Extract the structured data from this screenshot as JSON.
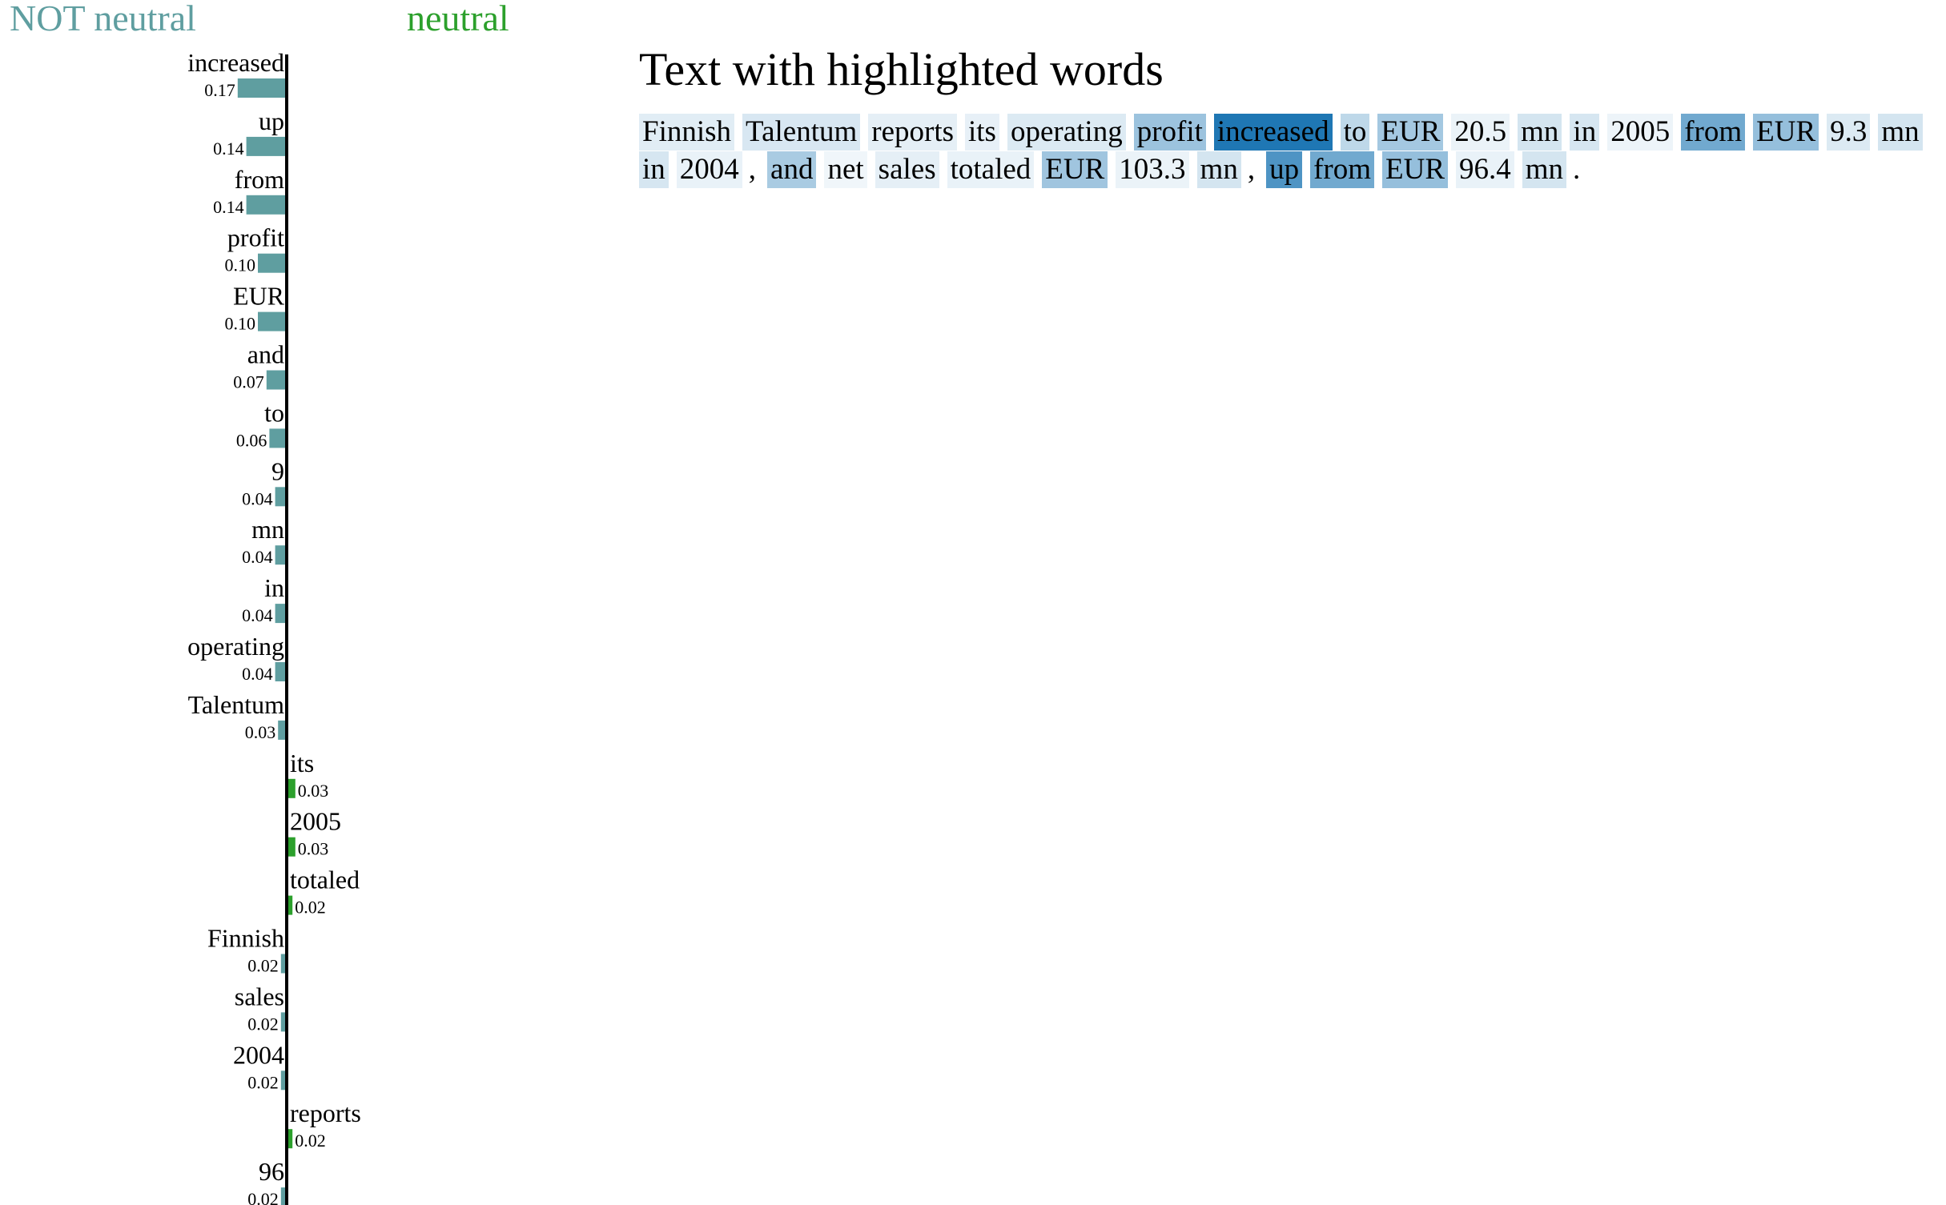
{
  "legend": {
    "left_label": "NOT neutral",
    "right_label": "neutral"
  },
  "colors": {
    "negative_bar": "#5f9ea0",
    "positive_bar": "#2ca02c",
    "highlight_base": "#1f77b4"
  },
  "chart_data": {
    "type": "bar",
    "orientation": "horizontal-diverging",
    "categories": [
      "increased",
      "up",
      "from",
      "profit",
      "EUR",
      "and",
      "to",
      "9",
      "mn",
      "in",
      "operating",
      "Talentum",
      "its",
      "2005",
      "totaled",
      "Finnish",
      "sales",
      "2004",
      "reports",
      "96"
    ],
    "values": [
      -0.17,
      -0.14,
      -0.14,
      -0.1,
      -0.1,
      -0.07,
      -0.06,
      -0.04,
      -0.04,
      -0.04,
      -0.04,
      -0.03,
      0.03,
      0.03,
      0.02,
      -0.02,
      -0.02,
      -0.02,
      0.02,
      -0.02
    ],
    "value_labels": [
      "0.17",
      "0.14",
      "0.14",
      "0.10",
      "0.10",
      "0.07",
      "0.06",
      "0.04",
      "0.04",
      "0.04",
      "0.04",
      "0.03",
      "0.03",
      "0.03",
      "0.02",
      "0.02",
      "0.02",
      "0.02",
      "0.02",
      "0.02"
    ]
  },
  "text_panel": {
    "title": "Text with highlighted words",
    "tokens": [
      {
        "t": "Finnish",
        "w": 0.1
      },
      {
        "t": "Talentum",
        "w": 0.14
      },
      {
        "t": "reports",
        "w": 0.08
      },
      {
        "t": "its",
        "w": 0.07
      },
      {
        "t": "operating",
        "w": 0.12
      },
      {
        "t": "profit",
        "w": 0.42
      },
      {
        "t": "increased",
        "w": 1.0
      },
      {
        "t": "to",
        "w": 0.26
      },
      {
        "t": "EUR",
        "w": 0.38
      },
      {
        "t": "20.5",
        "w": 0.05
      },
      {
        "t": "mn",
        "w": 0.16
      },
      {
        "t": "in",
        "w": 0.15
      },
      {
        "t": "2005",
        "w": 0.04
      },
      {
        "t": "from",
        "w": 0.62
      },
      {
        "t": "EUR",
        "w": 0.45
      },
      {
        "t": "9.3",
        "w": 0.12
      },
      {
        "t": "mn",
        "w": 0.16
      },
      {
        "t": "in",
        "w": 0.15
      },
      {
        "t": "2004",
        "w": 0.06
      },
      {
        "t": ",",
        "w": 0.0
      },
      {
        "t": "and",
        "w": 0.36
      },
      {
        "t": "net",
        "w": 0.03
      },
      {
        "t": "sales",
        "w": 0.08
      },
      {
        "t": "totaled",
        "w": 0.06
      },
      {
        "t": "EUR",
        "w": 0.4
      },
      {
        "t": "103.3",
        "w": 0.05
      },
      {
        "t": "mn",
        "w": 0.16
      },
      {
        "t": ",",
        "w": 0.0
      },
      {
        "t": "up",
        "w": 0.78
      },
      {
        "t": "from",
        "w": 0.62
      },
      {
        "t": "EUR",
        "w": 0.45
      },
      {
        "t": "96.4",
        "w": 0.06
      },
      {
        "t": "mn",
        "w": 0.16
      },
      {
        "t": ".",
        "w": 0.0
      }
    ]
  }
}
